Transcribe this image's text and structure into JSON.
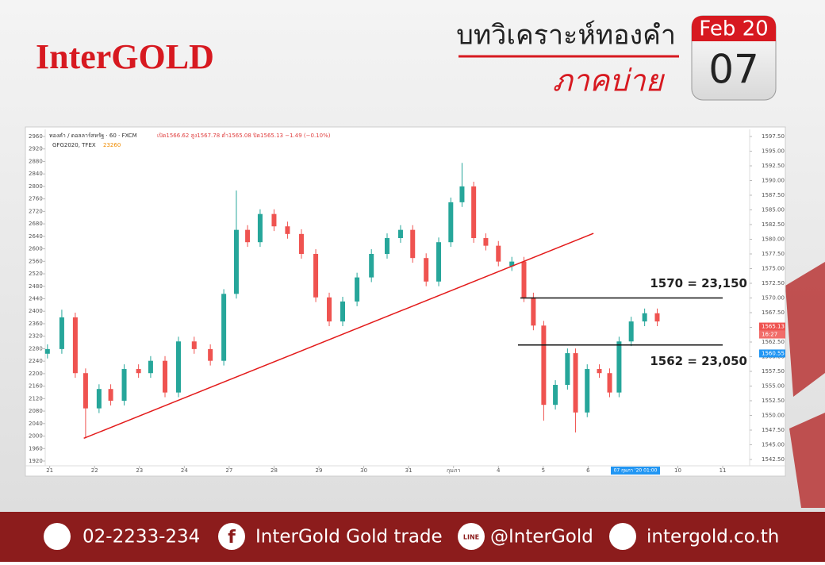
{
  "header": {
    "brand": "InterGOLD",
    "title": "บทวิเคราะห์ทองคำ",
    "subtitle": "ภาคบ่าย",
    "month": "Feb 20",
    "day": "07"
  },
  "chart_data": {
    "type": "candlestick",
    "symbol": "ทองคำ / ดอลลาร์สหรัฐ · 60 · FXCM",
    "ohlc_text": "เปิด1566.62 สูง1567.78 ต่ำ1565.08 ปิด1565.13 −1.49 (−0.10%)",
    "study": "GFG2020, TFEX",
    "study_value": 23260,
    "up_color": "#26a69a",
    "down_color": "#ef5350",
    "x": [
      -0.05,
      0.27,
      0.57,
      0.8,
      1.1,
      1.36,
      1.66,
      1.98,
      2.25,
      2.57,
      2.87,
      3.22,
      3.58,
      3.88,
      4.16,
      4.41,
      4.69,
      5.0,
      5.3,
      5.61,
      5.93,
      6.23,
      6.53,
      6.85,
      7.17,
      7.52,
      7.82,
      8.09,
      8.39,
      8.67,
      8.94,
      9.19,
      9.45,
      9.72,
      10.0,
      10.3,
      10.57,
      10.78,
      11.01,
      11.27,
      11.54,
      11.72,
      11.98,
      12.25,
      12.48,
      12.69,
      12.96,
      13.26,
      13.54
    ],
    "open": [
      1560.5,
      1561.3,
      1566.7,
      1557.2,
      1551.2,
      1554.5,
      1552.5,
      1557.9,
      1557.2,
      1559.3,
      1553.9,
      1562.6,
      1561.3,
      1559.3,
      1570.7,
      1581.6,
      1579.5,
      1584.3,
      1582.2,
      1580.9,
      1577.5,
      1570.1,
      1566.0,
      1569.4,
      1573.5,
      1577.5,
      1580.2,
      1581.6,
      1576.8,
      1572.8,
      1579.5,
      1586.3,
      1589.0,
      1580.2,
      1578.9,
      1575.4,
      1576.2,
      1570.1,
      1565.3,
      1551.8,
      1555.2,
      1560.6,
      1550.5,
      1557.9,
      1557.2,
      1553.9,
      1562.6,
      1566.0,
      1567.4
    ],
    "high": [
      1562.1,
      1568.0,
      1567.5,
      1558.0,
      1555.3,
      1555.3,
      1558.7,
      1558.7,
      1560.1,
      1560.1,
      1563.4,
      1563.4,
      1562.1,
      1571.5,
      1588.3,
      1582.4,
      1585.1,
      1585.1,
      1583.0,
      1581.7,
      1578.3,
      1570.9,
      1570.2,
      1574.3,
      1578.3,
      1581.0,
      1582.4,
      1582.4,
      1577.6,
      1580.3,
      1587.1,
      1593.0,
      1589.8,
      1581.0,
      1579.7,
      1577.0,
      1577.0,
      1570.9,
      1566.1,
      1556.0,
      1561.4,
      1561.4,
      1558.7,
      1558.7,
      1558.0,
      1563.4,
      1566.8,
      1568.2,
      1568.2
    ],
    "low": [
      1559.7,
      1560.5,
      1556.4,
      1546.1,
      1550.4,
      1551.7,
      1551.7,
      1556.4,
      1556.4,
      1553.1,
      1553.1,
      1560.5,
      1558.5,
      1558.5,
      1569.9,
      1578.7,
      1578.7,
      1581.4,
      1580.1,
      1576.7,
      1569.3,
      1565.2,
      1565.2,
      1568.6,
      1572.7,
      1576.7,
      1579.4,
      1576.0,
      1572.0,
      1572.0,
      1578.7,
      1585.5,
      1579.4,
      1578.1,
      1575.4,
      1574.6,
      1569.3,
      1564.5,
      1549.1,
      1551.0,
      1554.4,
      1547.1,
      1549.7,
      1556.4,
      1553.1,
      1553.1,
      1561.8,
      1565.2,
      1565.2
    ],
    "close": [
      1561.3,
      1566.7,
      1557.2,
      1551.2,
      1554.5,
      1552.5,
      1557.9,
      1557.2,
      1559.3,
      1553.9,
      1562.6,
      1561.3,
      1559.3,
      1570.7,
      1581.6,
      1579.5,
      1584.3,
      1582.2,
      1580.9,
      1577.5,
      1570.1,
      1566.0,
      1569.4,
      1573.5,
      1577.5,
      1580.2,
      1581.6,
      1576.8,
      1572.8,
      1579.5,
      1586.3,
      1589.0,
      1580.2,
      1578.9,
      1576.2,
      1576.2,
      1570.1,
      1565.3,
      1551.8,
      1555.2,
      1560.6,
      1550.5,
      1557.9,
      1557.2,
      1553.9,
      1562.6,
      1566.0,
      1567.4,
      1566.0
    ],
    "xlim": [
      -0.1,
      15.6
    ],
    "xticks": [
      {
        "value": 0,
        "label": "21"
      },
      {
        "value": 1,
        "label": "22"
      },
      {
        "value": 2,
        "label": "23"
      },
      {
        "value": 3,
        "label": "24"
      },
      {
        "value": 4,
        "label": "27"
      },
      {
        "value": 5,
        "label": "28"
      },
      {
        "value": 6,
        "label": "29"
      },
      {
        "value": 7,
        "label": "30"
      },
      {
        "value": 8,
        "label": "31"
      },
      {
        "value": 9,
        "label": "กุมภา"
      },
      {
        "value": 10,
        "label": "4"
      },
      {
        "value": 11,
        "label": "5"
      },
      {
        "value": 12,
        "label": "6"
      },
      {
        "value": 14,
        "label": "10"
      },
      {
        "value": 15,
        "label": "11"
      }
    ],
    "crosshair_label": "07 กุมภา '20 01:00",
    "ylim": [
      1542.5,
      1597.5
    ],
    "yticks": [
      {
        "value": 1542.5,
        "label": "1542.50"
      },
      {
        "value": 1545,
        "label": "1545.00"
      },
      {
        "value": 1547.5,
        "label": "1547.50"
      },
      {
        "value": 1550,
        "label": "1550.00"
      },
      {
        "value": 1552.5,
        "label": "1552.50"
      },
      {
        "value": 1555,
        "label": "1555.00"
      },
      {
        "value": 1557.5,
        "label": "1557.50"
      },
      {
        "value": 1560,
        "label": "1560.00"
      },
      {
        "value": 1562.5,
        "label": "1562.50"
      },
      {
        "value": 1565,
        "label": "1565.00"
      },
      {
        "value": 1567.5,
        "label": "1567.50"
      },
      {
        "value": 1570,
        "label": "1570.00"
      },
      {
        "value": 1572.5,
        "label": "1572.50"
      },
      {
        "value": 1575,
        "label": "1575.00"
      },
      {
        "value": 1577.5,
        "label": "1577.50"
      },
      {
        "value": 1580,
        "label": "1580.00"
      },
      {
        "value": 1582.5,
        "label": "1582.50"
      },
      {
        "value": 1585,
        "label": "1585.00"
      },
      {
        "value": 1587.5,
        "label": "1587.50"
      },
      {
        "value": 1590,
        "label": "1590.00"
      },
      {
        "value": 1592.5,
        "label": "1592.50"
      },
      {
        "value": 1595,
        "label": "1595.00"
      },
      {
        "value": 1597.5,
        "label": "1597.50"
      }
    ],
    "y2lim": [
      1920,
      2960
    ],
    "y2ticks": [
      1920,
      1960,
      2000,
      2040,
      2080,
      2120,
      2160,
      2200,
      2240,
      2280,
      2320,
      2360,
      2400,
      2440,
      2480,
      2520,
      2560,
      2600,
      2640,
      2680,
      2720,
      2760,
      2800,
      2840,
      2880,
      2920,
      2960
    ],
    "trendline": {
      "x": [
        0.76,
        12.12
      ],
      "y": [
        1546.1,
        1581.0
      ],
      "color": "#e31b1b"
    },
    "hlines": [
      {
        "value": 1570,
        "label": "1570 = 23,150"
      },
      {
        "value": 1562,
        "label": "1562 = 23,050"
      }
    ],
    "price_tags": [
      {
        "value": 1565.13,
        "time": "16:27",
        "color": "#ef5350"
      },
      {
        "value": 1560.55,
        "color": "#2196f3"
      }
    ]
  },
  "footer": {
    "phone": "02-2233-234",
    "facebook": "InterGold Gold trade",
    "line": "@InterGold",
    "website": "intergold.co.th"
  }
}
